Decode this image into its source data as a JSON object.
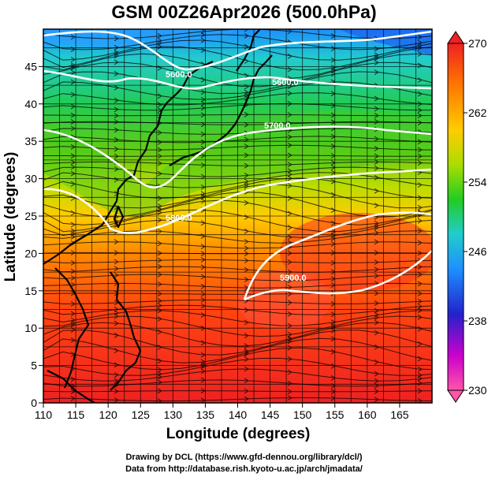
{
  "title": "GSM 00Z26Apr2026 (500.0hPa)",
  "map": {
    "x_axis": {
      "label": "Longitude (degrees)",
      "ticks": [
        "110",
        "115",
        "120",
        "125",
        "130",
        "135",
        "140",
        "145",
        "150",
        "155",
        "160",
        "165"
      ],
      "range": [
        110,
        170
      ]
    },
    "y_axis": {
      "label": "Latitude  (degrees)",
      "ticks": [
        "0",
        "5",
        "10",
        "15",
        "20",
        "25",
        "30",
        "35",
        "40",
        "45"
      ],
      "range": [
        0,
        50
      ]
    },
    "contour_labels": [
      "5600.0",
      "5600.0",
      "5700.0",
      "5800.0",
      "5900.0"
    ],
    "colorbar": {
      "labels": [
        "270",
        "262",
        "254",
        "246",
        "238",
        "230"
      ],
      "range": [
        230,
        270
      ],
      "colors": [
        "#ff55aa",
        "#cc00cc",
        "#2222cc",
        "#1e90ff",
        "#22cccc",
        "#22cc22",
        "#aadd00",
        "#ffcc00",
        "#ff7700",
        "#ee2222"
      ]
    }
  },
  "credits": {
    "line1": "Drawing by DCL (https://www.gfd-dennou.org/library/dcl/)",
    "line2": "Data from http://database.rish.kyoto-u.ac.jp/arch/jmadata/"
  }
}
